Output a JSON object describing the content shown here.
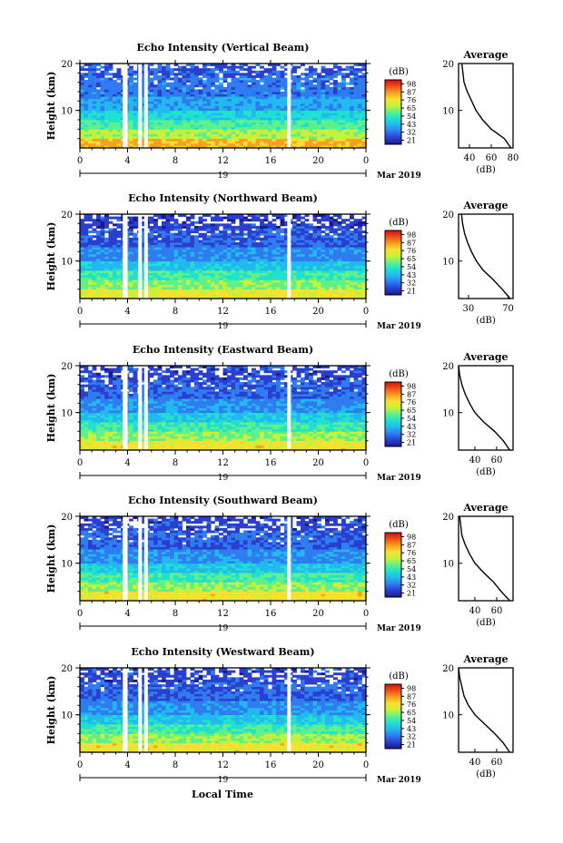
{
  "date_label": "Mar 2019",
  "x_axis_title": "Local Time",
  "x_ticks": [
    "0",
    "4",
    "8",
    "12",
    "16",
    "20",
    "0"
  ],
  "day_label": "19",
  "colorbar": {
    "unit": "(dB)",
    "ticks": [
      "98",
      "87",
      "76",
      "65",
      "54",
      "43",
      "32",
      "21"
    ],
    "colors": [
      "#1a1a8c",
      "#2a3fd0",
      "#2f7cf0",
      "#22b8f0",
      "#20e0d0",
      "#5ef08a",
      "#c8f03a",
      "#f8e030",
      "#f8a020",
      "#f05018",
      "#d01010"
    ]
  },
  "panels": [
    {
      "title": "Echo Intensity (Vertical Beam)",
      "ylabel": "Height (km)",
      "yticks": [
        "20",
        "10"
      ],
      "avg_title": "Average",
      "avg_xlabel": "(dB)",
      "avg_xticks": [
        "40",
        "60",
        "80"
      ],
      "avg_yticks": [
        "20",
        "10"
      ]
    },
    {
      "title": "Echo Intensity (Northward Beam)",
      "ylabel": "Height (km)",
      "yticks": [
        "20",
        "10"
      ],
      "avg_title": "Average",
      "avg_xlabel": "(dB)",
      "avg_xticks": [
        "30",
        "70"
      ],
      "avg_yticks": [
        "20",
        "10"
      ]
    },
    {
      "title": "Echo Intensity (Eastward Beam)",
      "ylabel": "Height (km)",
      "yticks": [
        "20",
        "10"
      ],
      "avg_title": "Average",
      "avg_xlabel": "(dB)",
      "avg_xticks": [
        "40",
        "60"
      ],
      "avg_yticks": [
        "20",
        "10"
      ]
    },
    {
      "title": "Echo Intensity (Southward Beam)",
      "ylabel": "Height (km)",
      "yticks": [
        "20",
        "10"
      ],
      "avg_title": "Average",
      "avg_xlabel": "(dB)",
      "avg_xticks": [
        "40",
        "60"
      ],
      "avg_yticks": [
        "20",
        "10"
      ]
    },
    {
      "title": "Echo Intensity (Westward Beam)",
      "ylabel": "Height (km)",
      "yticks": [
        "20",
        "10"
      ],
      "avg_title": "Average",
      "avg_xlabel": "(dB)",
      "avg_xticks": [
        "40",
        "60"
      ],
      "avg_yticks": [
        "20",
        "10"
      ]
    }
  ],
  "chart_data": {
    "type": "heatmap",
    "x_range_hours": [
      0,
      24
    ],
    "y_range_km": [
      2,
      20
    ],
    "color_range_db": [
      21,
      98
    ],
    "data_gaps_hours": [
      [
        3.6,
        4.0
      ],
      [
        4.9,
        5.2
      ],
      [
        5.4,
        5.7
      ],
      [
        17.4,
        17.7
      ]
    ],
    "profile_height_km": [
      2,
      4,
      6,
      8,
      10,
      12,
      14,
      16,
      18,
      20
    ],
    "panels": [
      {
        "beam": "Vertical",
        "avg_xlim": [
          30,
          80
        ],
        "layer_db": [
          [
            2,
            4,
            80
          ],
          [
            4,
            6,
            66
          ],
          [
            6,
            8,
            58
          ],
          [
            8,
            10,
            50
          ],
          [
            10,
            13,
            42
          ],
          [
            13,
            17,
            36
          ],
          [
            17,
            20,
            32
          ]
        ],
        "profile_db": [
          78,
          72,
          60,
          52,
          46,
          42,
          38,
          35,
          34,
          33
        ]
      },
      {
        "beam": "Northward",
        "avg_xlim": [
          20,
          75
        ],
        "layer_db": [
          [
            2,
            4,
            72
          ],
          [
            4,
            6,
            62
          ],
          [
            6,
            8,
            55
          ],
          [
            8,
            10,
            46
          ],
          [
            10,
            13,
            38
          ],
          [
            13,
            17,
            32
          ],
          [
            17,
            20,
            28
          ]
        ],
        "profile_db": [
          72,
          64,
          55,
          45,
          38,
          33,
          29,
          26,
          24,
          23
        ]
      },
      {
        "beam": "Eastward",
        "avg_xlim": [
          25,
          75
        ],
        "layer_db": [
          [
            2,
            4,
            74
          ],
          [
            4,
            6,
            64
          ],
          [
            6,
            8,
            56
          ],
          [
            8,
            10,
            47
          ],
          [
            10,
            13,
            39
          ],
          [
            13,
            17,
            33
          ],
          [
            17,
            20,
            29
          ]
        ],
        "profile_db": [
          72,
          66,
          58,
          48,
          40,
          35,
          31,
          28,
          26,
          25
        ]
      },
      {
        "beam": "Southward",
        "avg_xlim": [
          25,
          75
        ],
        "layer_db": [
          [
            2,
            4,
            74
          ],
          [
            4,
            6,
            64
          ],
          [
            6,
            8,
            56
          ],
          [
            8,
            10,
            47
          ],
          [
            10,
            13,
            39
          ],
          [
            13,
            17,
            33
          ],
          [
            17,
            20,
            29
          ]
        ],
        "profile_db": [
          72,
          64,
          57,
          48,
          40,
          35,
          31,
          28,
          27,
          26
        ]
      },
      {
        "beam": "Westward",
        "avg_xlim": [
          25,
          75
        ],
        "layer_db": [
          [
            2,
            4,
            74
          ],
          [
            4,
            6,
            64
          ],
          [
            6,
            8,
            56
          ],
          [
            8,
            10,
            47
          ],
          [
            10,
            13,
            39
          ],
          [
            13,
            17,
            33
          ],
          [
            17,
            20,
            29
          ]
        ],
        "profile_db": [
          72,
          66,
          58,
          49,
          40,
          34,
          30,
          28,
          26,
          25
        ]
      }
    ]
  }
}
